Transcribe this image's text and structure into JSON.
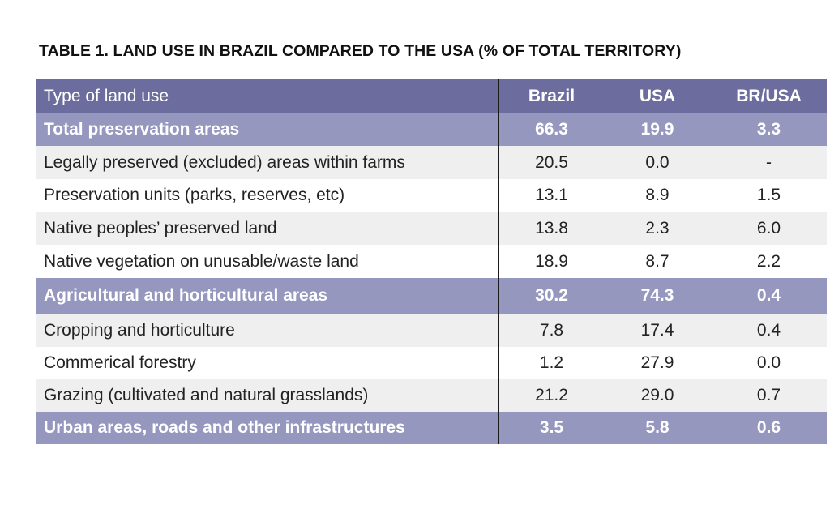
{
  "title": "TABLE 1. LAND USE IN BRAZIL COMPARED TO THE USA (% OF TOTAL TERRITORY)",
  "table": {
    "headers": [
      "Type of land use",
      "Brazil",
      "USA",
      "BR/USA"
    ],
    "rows": [
      {
        "kind": "section",
        "label": "Total preservation areas",
        "brazil": "66.3",
        "usa": "19.9",
        "ratio": "3.3"
      },
      {
        "kind": "sub",
        "label": "Legally preserved (excluded) areas within farms",
        "brazil": "20.5",
        "usa": "0.0",
        "ratio": "-"
      },
      {
        "kind": "sub",
        "label": "Preservation units (parks, reserves, etc)",
        "brazil": "13.1",
        "usa": "8.9",
        "ratio": "1.5"
      },
      {
        "kind": "sub",
        "label": "Native peoples’ preserved land",
        "brazil": "13.8",
        "usa": "2.3",
        "ratio": "6.0"
      },
      {
        "kind": "sub",
        "label": "Native vegetation on unusable/waste land",
        "brazil": "18.9",
        "usa": "8.7",
        "ratio": "2.2"
      },
      {
        "kind": "section",
        "label": "Agricultural and horticultural areas",
        "brazil": "30.2",
        "usa": "74.3",
        "ratio": "0.4"
      },
      {
        "kind": "sub",
        "label": "Cropping and horticulture",
        "brazil": "7.8",
        "usa": "17.4",
        "ratio": "0.4"
      },
      {
        "kind": "sub",
        "label": "Commerical forestry",
        "brazil": "1.2",
        "usa": "27.9",
        "ratio": "0.0"
      },
      {
        "kind": "sub",
        "label": "Grazing (cultivated and natural grasslands)",
        "brazil": "21.2",
        "usa": "29.0",
        "ratio": "0.7"
      },
      {
        "kind": "section",
        "label": "Urban areas, roads and other infrastructures",
        "brazil": "3.5",
        "usa": "5.8",
        "ratio": "0.6"
      }
    ]
  },
  "colors": {
    "header_bg": "#6c6d9e",
    "section_bg": "#9597bf",
    "stripe_bg": "#efefef",
    "divider": "#1a1a1a"
  }
}
